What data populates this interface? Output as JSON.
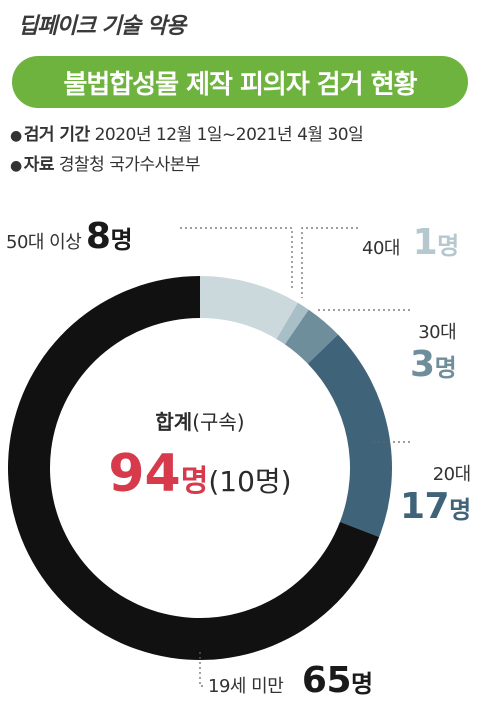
{
  "topic": "딥페이크 기술 악용",
  "banner": "불법합성물 제작 피의자 검거 현황",
  "period_label": "검거 기간",
  "period_value": "2020년 12월 1일~2021년 4월 30일",
  "source_label": "자료",
  "source_value": "경찰청 국가수사본부",
  "bullet": "●",
  "chart_data": {
    "type": "pie",
    "donut": true,
    "slices": [
      {
        "label": "50대 이상",
        "value": 8,
        "display": "8",
        "color": "#cbd9dd"
      },
      {
        "label": "40대",
        "value": 1,
        "display": "1",
        "color": "#a8bfc7"
      },
      {
        "label": "30대",
        "value": 3,
        "display": "3",
        "color": "#6f8e9c"
      },
      {
        "label": "20대",
        "value": 17,
        "display": "17",
        "color": "#3f6378"
      },
      {
        "label": "19세 미만",
        "value": 65,
        "display": "65",
        "color": "#111111"
      }
    ],
    "unit": "명",
    "center_title": "합계",
    "center_sub": "(구속)",
    "total": "94",
    "total_unit": "명",
    "arrested": "(10명)",
    "accent": "#d63a4b"
  }
}
